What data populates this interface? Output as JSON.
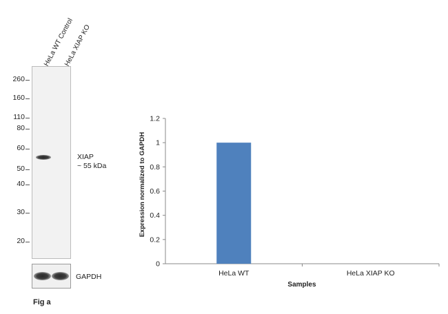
{
  "western_blot": {
    "lane_labels": [
      "HeLa WT Control",
      "HeLa XIAP KO"
    ],
    "mw_markers": [
      "260",
      "160",
      "110",
      "80",
      "60",
      "50",
      "40",
      "30",
      "20"
    ],
    "target_label": "XIAP",
    "target_size": "~ 55 kDa",
    "loading_control": "GAPDH",
    "figure_label": "Fig a"
  },
  "chart_data": {
    "type": "bar",
    "categories": [
      "HeLa WT",
      "HeLa XIAP KO"
    ],
    "values": [
      1,
      0
    ],
    "xlabel": "Samples",
    "ylabel": "Expression  normalized to GAPDH",
    "ylim": [
      0,
      1.2
    ],
    "yticks": [
      "0",
      "0.2",
      "0.4",
      "0.6",
      "0.8",
      "1",
      "1.2"
    ],
    "bar_color": "#4f81bd",
    "grid": false
  }
}
